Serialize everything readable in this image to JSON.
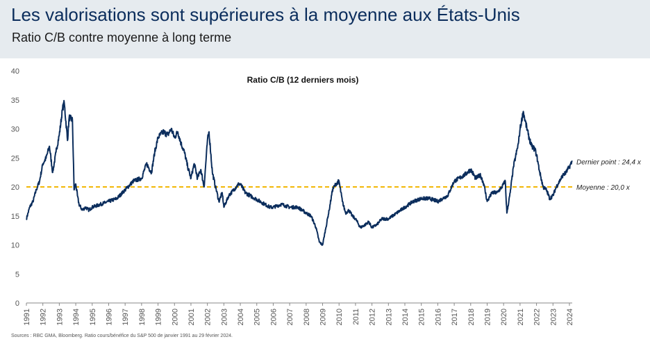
{
  "header": {
    "title": "Les valorisations sont supérieures à la moyenne aux États-Unis",
    "subtitle": "Ratio C/B contre moyenne à long terme"
  },
  "footer": {
    "source": "Sources : RBC GMA, Bloomberg. Ratio cours/bénéfice du S&P 500 de janvier 1991 au 29 février 2024."
  },
  "colors": {
    "line": "#0b2d5c",
    "average": "#f2b705",
    "header_bg": "#e6ebef"
  },
  "chart_data": {
    "type": "line",
    "title": "Ratio C/B (12 derniers mois)",
    "xlabel": "",
    "ylabel": "",
    "xlim": [
      1991,
      2024.17
    ],
    "ylim": [
      0,
      40
    ],
    "yticks": [
      0,
      5,
      10,
      15,
      20,
      25,
      30,
      35,
      40
    ],
    "xticks": [
      "1991",
      "1992",
      "1993",
      "1994",
      "1995",
      "1996",
      "1997",
      "1998",
      "1999",
      "2000",
      "2001",
      "2002",
      "2003",
      "2004",
      "2005",
      "2006",
      "2007",
      "2008",
      "2009",
      "2010",
      "2011",
      "2012",
      "2013",
      "2014",
      "2015",
      "2016",
      "2017",
      "2018",
      "2019",
      "2020",
      "2021",
      "2022",
      "2023",
      "2024"
    ],
    "grid": false,
    "series": [
      {
        "name": "Ratio C/B (12 derniers mois)",
        "x": [
          1991.0,
          1991.2,
          1991.4,
          1991.6,
          1991.8,
          1992.0,
          1992.2,
          1992.4,
          1992.6,
          1992.8,
          1993.0,
          1993.2,
          1993.3,
          1993.5,
          1993.6,
          1993.8,
          1993.9,
          1994.0,
          1994.1,
          1994.2,
          1994.4,
          1994.6,
          1994.8,
          1995.0,
          1995.5,
          1996.0,
          1996.5,
          1997.0,
          1997.5,
          1998.0,
          1998.3,
          1998.6,
          1998.8,
          1999.0,
          1999.3,
          1999.6,
          1999.8,
          2000.0,
          2000.2,
          2000.4,
          2000.6,
          2000.8,
          2001.0,
          2001.2,
          2001.4,
          2001.6,
          2001.8,
          2002.0,
          2002.1,
          2002.3,
          2002.5,
          2002.7,
          2002.9,
          2003.0,
          2003.3,
          2003.6,
          2003.9,
          2004.0,
          2004.3,
          2004.6,
          2004.9,
          2005.2,
          2005.5,
          2005.8,
          2006.0,
          2006.5,
          2007.0,
          2007.5,
          2008.0,
          2008.3,
          2008.6,
          2008.8,
          2009.0,
          2009.2,
          2009.4,
          2009.6,
          2009.8,
          2010.0,
          2010.2,
          2010.4,
          2010.6,
          2010.8,
          2011.0,
          2011.3,
          2011.6,
          2011.8,
          2012.0,
          2012.3,
          2012.6,
          2013.0,
          2013.5,
          2014.0,
          2014.5,
          2015.0,
          2015.5,
          2016.0,
          2016.3,
          2016.6,
          2017.0,
          2017.3,
          2017.6,
          2018.0,
          2018.3,
          2018.6,
          2018.8,
          2019.0,
          2019.3,
          2019.6,
          2019.9,
          2020.1,
          2020.2,
          2020.4,
          2020.6,
          2020.9,
          2021.0,
          2021.2,
          2021.3,
          2021.5,
          2021.7,
          2021.9,
          2022.0,
          2022.2,
          2022.4,
          2022.6,
          2022.8,
          2023.0,
          2023.2,
          2023.4,
          2023.6,
          2023.8,
          2024.0,
          2024.17
        ],
        "y": [
          14.5,
          16.5,
          17.5,
          19.5,
          21.0,
          24.0,
          25.0,
          27.0,
          22.5,
          26.0,
          29.0,
          33.5,
          34.5,
          28.0,
          32.0,
          31.5,
          19.5,
          20.5,
          18.5,
          17.0,
          16.0,
          16.5,
          16.0,
          16.5,
          17.0,
          17.5,
          18.0,
          19.5,
          21.0,
          21.5,
          24.0,
          22.5,
          26.0,
          28.5,
          29.5,
          29.0,
          30.0,
          28.5,
          29.5,
          27.5,
          26.0,
          23.5,
          21.5,
          24.0,
          21.5,
          23.0,
          20.0,
          28.0,
          29.5,
          22.5,
          20.0,
          17.5,
          19.0,
          16.5,
          18.5,
          19.5,
          20.5,
          20.5,
          19.0,
          18.5,
          18.0,
          17.5,
          17.0,
          16.5,
          16.5,
          17.0,
          16.5,
          16.5,
          15.5,
          15.0,
          13.0,
          10.5,
          10.0,
          13.0,
          16.0,
          19.5,
          20.5,
          21.0,
          17.5,
          15.5,
          16.0,
          15.0,
          14.5,
          13.0,
          13.5,
          14.0,
          13.0,
          13.5,
          14.5,
          14.5,
          15.5,
          16.5,
          17.5,
          18.0,
          18.0,
          17.5,
          18.0,
          18.5,
          21.0,
          21.5,
          22.0,
          23.0,
          21.5,
          22.0,
          20.5,
          17.5,
          19.0,
          19.0,
          20.0,
          21.0,
          15.5,
          19.0,
          23.5,
          27.5,
          30.0,
          33.0,
          31.5,
          29.0,
          27.0,
          26.5,
          25.5,
          22.5,
          20.0,
          19.5,
          18.0,
          18.5,
          20.0,
          21.0,
          22.0,
          22.5,
          23.5,
          24.4
        ]
      }
    ],
    "reference_line": {
      "name": "Moyenne",
      "value": 20.0
    },
    "annotations": [
      {
        "text": "Dernier point : 24,4 x",
        "x": 2024.17,
        "y": 24.4
      },
      {
        "text": "Moyenne : 20,0 x",
        "x": 2024.17,
        "y": 20.0
      }
    ]
  }
}
